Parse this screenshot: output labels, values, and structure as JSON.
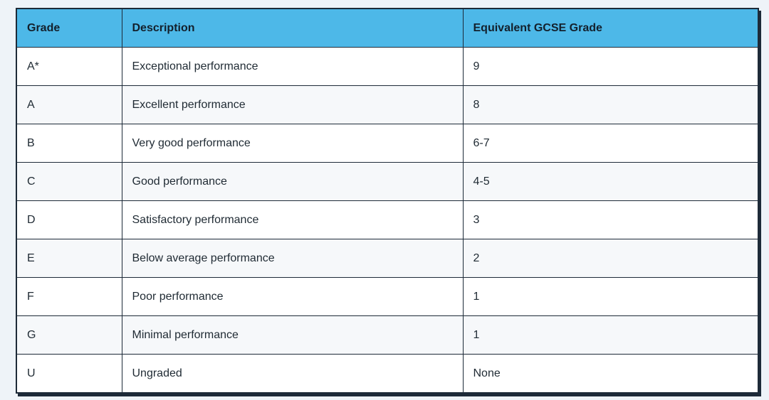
{
  "table": {
    "headers": [
      "Grade",
      "Description",
      "Equivalent GCSE Grade"
    ],
    "rows": [
      [
        "A*",
        "Exceptional performance",
        "9"
      ],
      [
        "A",
        "Excellent performance",
        "8"
      ],
      [
        "B",
        "Very good performance",
        "6-7"
      ],
      [
        "C",
        "Good performance",
        "4-5"
      ],
      [
        "D",
        "Satisfactory performance",
        "3"
      ],
      [
        "E",
        "Below average performance",
        "2"
      ],
      [
        "F",
        "Poor performance",
        "1"
      ],
      [
        "G",
        "Minimal performance",
        "1"
      ],
      [
        "U",
        "Ungraded",
        "None"
      ]
    ]
  },
  "colors": {
    "header_background": "#4db8e8",
    "border": "#1d2a38",
    "page_background": "#eef3f8"
  }
}
